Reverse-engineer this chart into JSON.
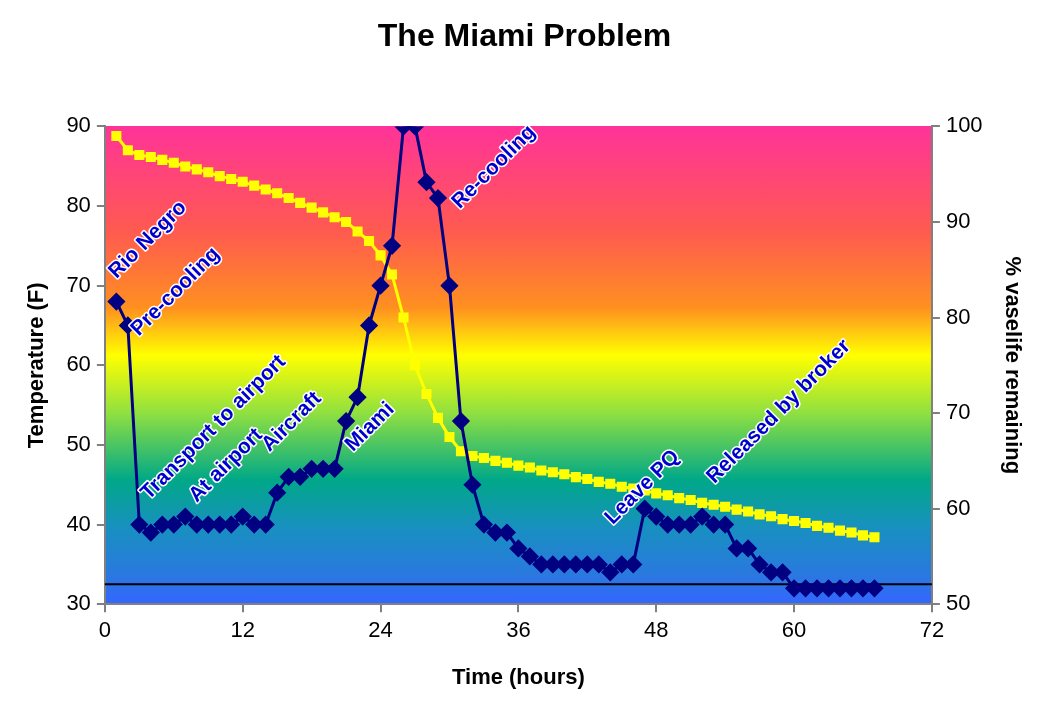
{
  "chart_data": {
    "type": "line",
    "title": "The Miami Problem",
    "xlabel": "Time (hours)",
    "ylabel": "Temperature (F)",
    "y2label": "% vaselife remaining",
    "x": [
      1,
      2,
      3,
      4,
      5,
      6,
      7,
      8,
      9,
      10,
      11,
      12,
      13,
      14,
      15,
      16,
      17,
      18,
      19,
      20,
      21,
      22,
      23,
      24,
      25,
      26,
      27,
      28,
      29,
      30,
      31,
      32,
      33,
      34,
      35,
      36,
      37,
      38,
      39,
      40,
      41,
      42,
      43,
      44,
      45,
      46,
      47,
      48,
      49,
      50,
      51,
      52,
      53,
      54,
      55,
      56,
      57,
      58,
      59,
      60,
      61,
      62,
      63,
      64,
      65,
      66,
      67
    ],
    "series": [
      {
        "color": "#000080",
        "marker": "diamond",
        "values": [
          68,
          65,
          40,
          39,
          40,
          40,
          41,
          40,
          40,
          40,
          40,
          41,
          40,
          40,
          44,
          46,
          46,
          47,
          47,
          47,
          53,
          56,
          65,
          70,
          75,
          90,
          90,
          83,
          81,
          70,
          53,
          45,
          40,
          39,
          39,
          37,
          36,
          35,
          35,
          35,
          35,
          35,
          35,
          34,
          35,
          35,
          42,
          41,
          40,
          40,
          40,
          41,
          40,
          40,
          37,
          37,
          35,
          34,
          34,
          32,
          32,
          32,
          32,
          32,
          32,
          32,
          32
        ]
      },
      {
        "color": "#ffff00",
        "marker": "square",
        "axis": "y2",
        "values": [
          99,
          97.5,
          97,
          96.8,
          96.5,
          96.2,
          95.8,
          95.5,
          95.2,
          94.8,
          94.5,
          94.2,
          93.8,
          93.4,
          93,
          92.5,
          92,
          91.5,
          91,
          90.5,
          90,
          89,
          88,
          86.5,
          84.5,
          80,
          75,
          72,
          69.5,
          67.5,
          66,
          65.5,
          65.3,
          65.0,
          64.8,
          64.5,
          64.3,
          64.0,
          63.8,
          63.6,
          63.3,
          63.1,
          62.8,
          62.6,
          62.3,
          62.1,
          61.9,
          61.6,
          61.4,
          61.1,
          60.9,
          60.6,
          60.4,
          60.2,
          59.9,
          59.7,
          59.4,
          59.2,
          58.9,
          58.7,
          58.5,
          58.2,
          58.0,
          57.7,
          57.5,
          57.2,
          57.0
        ]
      }
    ],
    "xlim": [
      0,
      72
    ],
    "xticks": [
      0,
      12,
      24,
      36,
      48,
      60,
      72
    ],
    "ylim": [
      30,
      90
    ],
    "yticks": [
      30,
      40,
      50,
      60,
      70,
      80,
      90
    ],
    "y2lim": [
      50,
      100
    ],
    "y2ticks": [
      50,
      60,
      70,
      80,
      90,
      100
    ],
    "ref_lines": [
      {
        "axis": "y",
        "value": 32.5,
        "color": "#000000"
      }
    ],
    "annotations": [
      "Rio Negro",
      "Pre-cooling",
      "Transport to airport",
      "At airport",
      "Aircraft",
      "Miami",
      "Re-cooling",
      "Leave PQ",
      "Released by broker"
    ],
    "grid": false,
    "legend": false
  }
}
